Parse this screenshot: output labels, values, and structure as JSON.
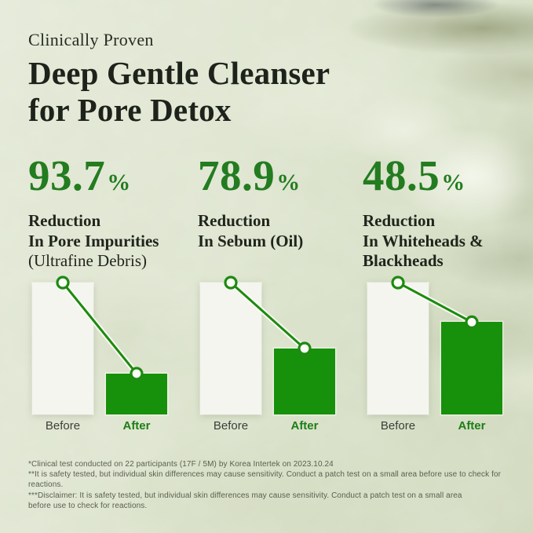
{
  "header": {
    "eyebrow": "Clinically Proven",
    "title_line1": "Deep Gentle Cleanser",
    "title_line2": "for Pore Detox"
  },
  "stats": [
    {
      "value": "93.7",
      "percent_sign": "%",
      "lines": [
        "Reduction",
        "In Pore Impurities",
        "(Ultrafine Debris)"
      ]
    },
    {
      "value": "78.9",
      "percent_sign": "%",
      "lines": [
        "Reduction",
        "In Sebum (Oil)"
      ]
    },
    {
      "value": "48.5",
      "percent_sign": "%",
      "lines": [
        "Reduction",
        "In Whiteheads &",
        "Blackheads"
      ]
    }
  ],
  "chart_data": [
    {
      "type": "bar",
      "title": "93.7% Reduction In Pore Impurities (Ultrafine Debris)",
      "categories": [
        "Before",
        "After"
      ],
      "values": [
        100,
        31
      ],
      "reduction_pct": 93.7,
      "value_note": "bar heights are illustrative relative levels (Before=100)",
      "xlabel": "",
      "ylabel": "",
      "axes_shown": false,
      "legend": "none"
    },
    {
      "type": "bar",
      "title": "78.9% Reduction In Sebum (Oil)",
      "categories": [
        "Before",
        "After"
      ],
      "values": [
        100,
        50
      ],
      "reduction_pct": 78.9,
      "value_note": "bar heights are illustrative relative levels (Before=100)",
      "xlabel": "",
      "ylabel": "",
      "axes_shown": false,
      "legend": "none"
    },
    {
      "type": "bar",
      "title": "48.5% Reduction In Whiteheads & Blackheads",
      "categories": [
        "Before",
        "After"
      ],
      "values": [
        100,
        70
      ],
      "reduction_pct": 48.5,
      "value_note": "bar heights are illustrative relative levels (Before=100)",
      "xlabel": "",
      "ylabel": "",
      "axes_shown": false,
      "legend": "none"
    }
  ],
  "footnotes": [
    "*Clinical test conducted on 22 participants (17F / 5M) by Korea Intertek on 2023.10.24",
    "**It is safety tested, but individual skin differences may cause sensitivity. Conduct a patch test on a small area before use to check for reactions.",
    "***Disclaimer: It is safety tested, but individual skin differences may cause sensitivity. Conduct a patch test on a small area",
    "before use to check for reactions."
  ],
  "colors": {
    "accent_green_text": "#237c20",
    "bar_green": "#17910b",
    "connector_green": "#1d8a10",
    "before_bar": "#f3f5ee",
    "heading": "#1d231b",
    "before_label": "#3b3f38",
    "footnote_gray": "#586050",
    "background_sage": "#dce3cd"
  }
}
